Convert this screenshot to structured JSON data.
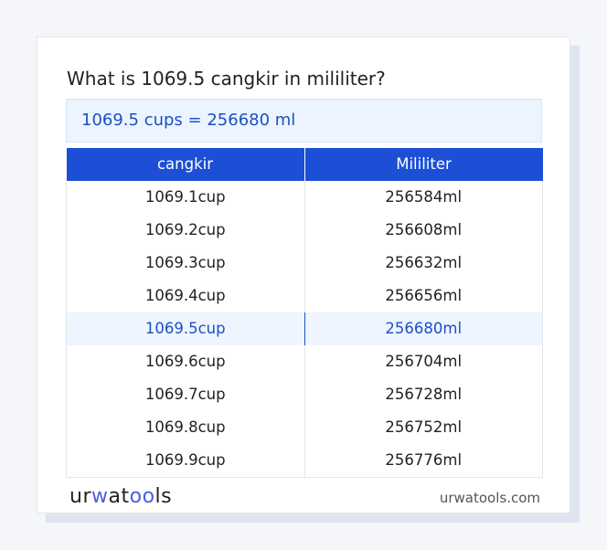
{
  "title": "What is 1069.5 cangkir in mililiter?",
  "result": "1069.5 cups = 256680 ml",
  "table": {
    "headers": [
      "cangkir",
      "Mililiter"
    ],
    "rows": [
      [
        "1069.1cup",
        "256584ml"
      ],
      [
        "1069.2cup",
        "256608ml"
      ],
      [
        "1069.3cup",
        "256632ml"
      ],
      [
        "1069.4cup",
        "256656ml"
      ],
      [
        "1069.5cup",
        "256680ml"
      ],
      [
        "1069.6cup",
        "256704ml"
      ],
      [
        "1069.7cup",
        "256728ml"
      ],
      [
        "1069.8cup",
        "256752ml"
      ],
      [
        "1069.9cup",
        "256776ml"
      ]
    ],
    "highlighted_row": 4
  },
  "footer": {
    "logo": "urwatools",
    "site": "urwatools.com"
  },
  "colors": {
    "accent": "#1c4fd6",
    "highlight_bg": "#eef5ff"
  }
}
